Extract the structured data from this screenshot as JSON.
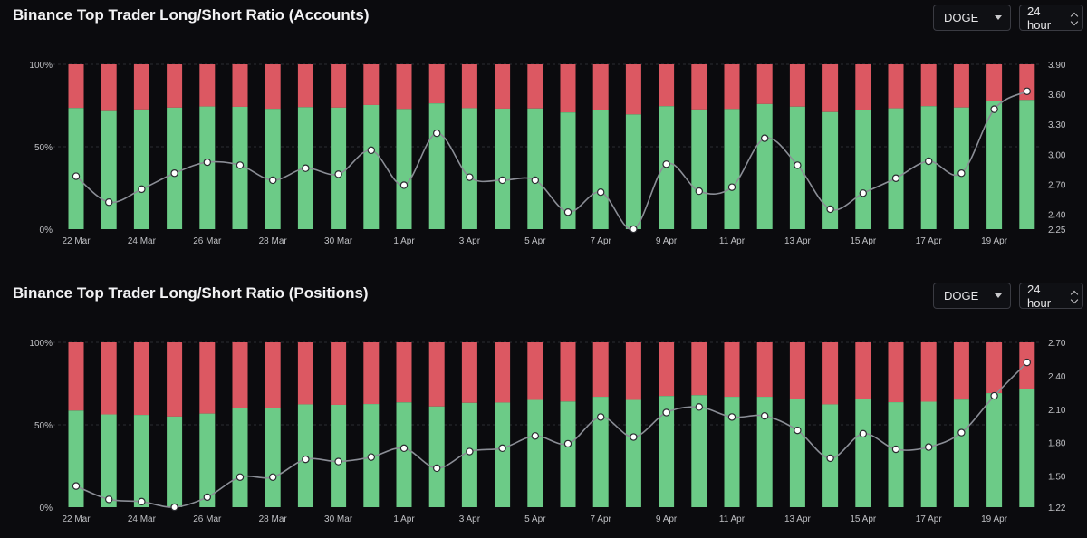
{
  "panels": [
    {
      "title": "Binance Top Trader Long/Short Ratio (Accounts)",
      "coin_select": {
        "value": "DOGE"
      },
      "period_select": {
        "value": "24 hour"
      }
    },
    {
      "title": "Binance Top Trader Long/Short Ratio (Positions)",
      "coin_select": {
        "value": "DOGE"
      },
      "period_select": {
        "value": "24 hour"
      }
    }
  ],
  "colors": {
    "long": "#6ccb87",
    "short": "#dc5862",
    "line": "#8b8e96",
    "point_fill": "#ffffff",
    "grid": "#2b2c33",
    "axis_text": "#bfc0c4"
  },
  "chart_data": [
    {
      "type": "bar",
      "title": "Binance Top Trader Long/Short Ratio (Accounts)",
      "categories": [
        "22 Mar",
        "23 Mar",
        "24 Mar",
        "25 Mar",
        "26 Mar",
        "27 Mar",
        "28 Mar",
        "29 Mar",
        "30 Mar",
        "31 Mar",
        "1 Apr",
        "2 Apr",
        "3 Apr",
        "4 Apr",
        "5 Apr",
        "6 Apr",
        "7 Apr",
        "8 Apr",
        "9 Apr",
        "10 Apr",
        "11 Apr",
        "12 Apr",
        "13 Apr",
        "14 Apr",
        "15 Apr",
        "16 Apr",
        "17 Apr",
        "18 Apr",
        "19 Apr",
        "20 Apr"
      ],
      "x_tick_labels": [
        "22 Mar",
        "24 Mar",
        "26 Mar",
        "28 Mar",
        "30 Mar",
        "1 Apr",
        "3 Apr",
        "5 Apr",
        "7 Apr",
        "9 Apr",
        "11 Apr",
        "13 Apr",
        "15 Apr",
        "17 Apr",
        "19 Apr"
      ],
      "series": [
        {
          "name": "Long",
          "values": [
            73.5,
            71.6,
            72.6,
            73.7,
            74.4,
            74.2,
            73.0,
            74.0,
            73.7,
            75.3,
            72.9,
            76.3,
            73.4,
            73.1,
            73.2,
            70.8,
            72.3,
            69.6,
            74.6,
            72.6,
            72.9,
            75.9,
            74.3,
            71.0,
            72.4,
            73.3,
            74.6,
            73.8,
            77.8,
            78.4
          ]
        },
        {
          "name": "Short",
          "values": [
            26.5,
            28.4,
            27.4,
            26.3,
            25.6,
            25.8,
            27.0,
            26.0,
            26.3,
            24.7,
            27.1,
            23.7,
            26.6,
            26.9,
            26.8,
            29.2,
            27.7,
            30.4,
            25.4,
            27.4,
            27.1,
            24.1,
            25.7,
            29.0,
            27.6,
            26.7,
            25.4,
            26.2,
            22.2,
            21.6
          ]
        },
        {
          "name": "Long/Short Ratio",
          "values": [
            2.78,
            2.52,
            2.65,
            2.81,
            2.92,
            2.89,
            2.74,
            2.86,
            2.8,
            3.04,
            2.69,
            3.21,
            2.77,
            2.74,
            2.74,
            2.42,
            2.62,
            2.25,
            2.9,
            2.63,
            2.67,
            3.16,
            2.89,
            2.45,
            2.61,
            2.76,
            2.93,
            2.81,
            3.45,
            3.63
          ]
        }
      ],
      "y_left": {
        "ticks": [
          "0%",
          "50%",
          "100%"
        ],
        "range": [
          0,
          100
        ]
      },
      "y_right": {
        "ticks": [
          "2.25",
          "2.40",
          "2.70",
          "3.00",
          "3.30",
          "3.60",
          "3.90"
        ],
        "range": [
          2.25,
          3.9
        ]
      }
    },
    {
      "type": "bar",
      "title": "Binance Top Trader Long/Short Ratio (Positions)",
      "categories": [
        "22 Mar",
        "23 Mar",
        "24 Mar",
        "25 Mar",
        "26 Mar",
        "27 Mar",
        "28 Mar",
        "29 Mar",
        "30 Mar",
        "31 Mar",
        "1 Apr",
        "2 Apr",
        "3 Apr",
        "4 Apr",
        "5 Apr",
        "6 Apr",
        "7 Apr",
        "8 Apr",
        "9 Apr",
        "10 Apr",
        "11 Apr",
        "12 Apr",
        "13 Apr",
        "14 Apr",
        "15 Apr",
        "16 Apr",
        "17 Apr",
        "18 Apr",
        "19 Apr",
        "20 Apr"
      ],
      "x_tick_labels": [
        "22 Mar",
        "24 Mar",
        "26 Mar",
        "28 Mar",
        "30 Mar",
        "1 Apr",
        "3 Apr",
        "5 Apr",
        "7 Apr",
        "9 Apr",
        "11 Apr",
        "13 Apr",
        "15 Apr",
        "17 Apr",
        "19 Apr"
      ],
      "series": [
        {
          "name": "Long",
          "values": [
            58.6,
            56.3,
            56.0,
            55.0,
            56.8,
            60.0,
            60.0,
            62.4,
            62.1,
            62.6,
            63.6,
            61.1,
            63.3,
            63.5,
            65.1,
            64.1,
            67.0,
            65.1,
            67.5,
            68.0,
            67.0,
            67.0,
            65.7,
            62.4,
            65.4,
            63.7,
            64.0,
            65.3,
            69.2,
            71.7
          ]
        },
        {
          "name": "Short",
          "values": [
            41.4,
            43.7,
            44.0,
            45.0,
            43.2,
            40.0,
            40.0,
            37.6,
            37.9,
            37.4,
            36.4,
            38.9,
            36.7,
            36.5,
            34.9,
            35.9,
            33.0,
            34.9,
            32.5,
            32.0,
            33.0,
            33.0,
            34.3,
            37.6,
            34.6,
            36.3,
            36.0,
            34.7,
            30.8,
            28.3
          ]
        },
        {
          "name": "Long/Short Ratio",
          "values": [
            1.41,
            1.29,
            1.27,
            1.22,
            1.31,
            1.49,
            1.49,
            1.65,
            1.63,
            1.67,
            1.75,
            1.57,
            1.72,
            1.75,
            1.86,
            1.79,
            2.03,
            1.85,
            2.07,
            2.12,
            2.03,
            2.04,
            1.91,
            1.66,
            1.88,
            1.74,
            1.76,
            1.89,
            2.22,
            2.52
          ]
        }
      ],
      "y_left": {
        "ticks": [
          "0%",
          "50%",
          "100%"
        ],
        "range": [
          0,
          100
        ]
      },
      "y_right": {
        "ticks": [
          "1.22",
          "1.50",
          "1.80",
          "2.10",
          "2.40",
          "2.70"
        ],
        "range": [
          1.22,
          2.7
        ]
      }
    }
  ]
}
